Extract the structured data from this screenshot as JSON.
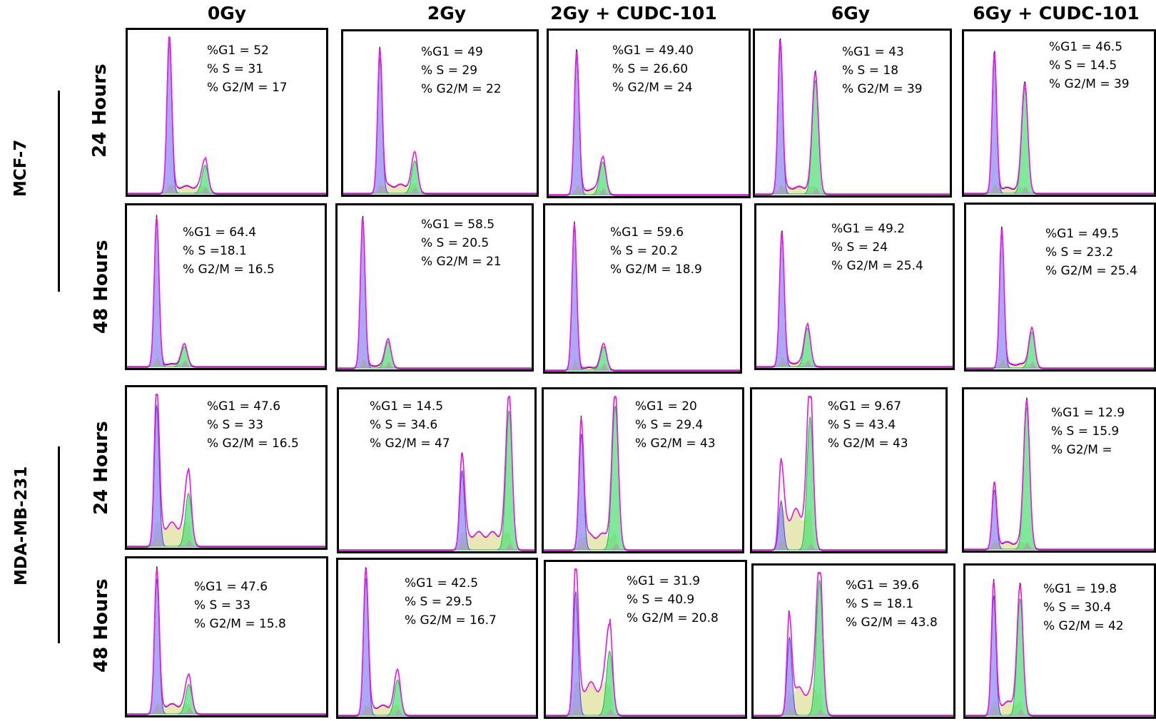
{
  "figure": {
    "columns": [
      "0Gy",
      "2Gy",
      "2Gy + CUDC-101",
      "6Gy",
      "6Gy + CUDC-101"
    ],
    "cell_lines": [
      "MCF-7",
      "MDA-MB-231"
    ],
    "timepoints": [
      "24 Hours",
      "48 Hours",
      "24 Hours",
      "48 Hours"
    ]
  },
  "colors": {
    "g1": "#8f8cf0",
    "s": "#e0df9e",
    "g2m": "#54e07a",
    "overlay": "#ee14ee",
    "raw": "#111111",
    "debris": "#a8a8a8"
  },
  "chart_data": {
    "type": "histogram",
    "description_axes": "DNA content (x) vs cell count (y); phase-fit overlays G1 / S / G2-M",
    "panels": [
      {
        "line": "MCF-7",
        "time": "24 Hours",
        "treatment": "0Gy",
        "lines": [
          "%G1 = 52",
          "% S = 31",
          "% G2/M = 17"
        ],
        "g1": 52,
        "s": 31,
        "g2m": 17,
        "peaks": {
          "g1_pos": 0.21,
          "g1_h": 0.97,
          "g2_pos": 0.39,
          "g2_h": 0.18,
          "s_level": 0.05
        }
      },
      {
        "line": "MCF-7",
        "time": "24 Hours",
        "treatment": "2Gy",
        "lines": [
          "%G1 = 49",
          "% S = 29",
          "% G2/M = 22"
        ],
        "g1": 49,
        "s": 29,
        "g2m": 22,
        "peaks": {
          "g1_pos": 0.19,
          "g1_h": 0.88,
          "g2_pos": 0.37,
          "g2_h": 0.21,
          "s_level": 0.06
        }
      },
      {
        "line": "MCF-7",
        "time": "24 Hours",
        "treatment": "2Gy + CUDC-101",
        "lines": [
          "%G1 = 49.40",
          "% S = 26.60",
          "% G2/M = 24"
        ],
        "g1": 49.4,
        "s": 26.6,
        "g2m": 24,
        "peaks": {
          "g1_pos": 0.14,
          "g1_h": 0.88,
          "g2_pos": 0.27,
          "g2_h": 0.21,
          "s_level": 0.04
        }
      },
      {
        "line": "MCF-7",
        "time": "24 Hours",
        "treatment": "6Gy",
        "lines": [
          "%G1 = 43",
          "% S = 18",
          "% G2/M = 39"
        ],
        "g1": 43,
        "s": 18,
        "g2m": 39,
        "peaks": {
          "g1_pos": 0.13,
          "g1_h": 0.95,
          "g2_pos": 0.31,
          "g2_h": 0.73,
          "s_level": 0.05
        }
      },
      {
        "line": "MCF-7",
        "time": "24 Hours",
        "treatment": "6Gy + CUDC-101",
        "lines": [
          "%G1 = 46.5",
          "% S = 14.5",
          "% G2/M = 39"
        ],
        "g1": 46.5,
        "s": 14.5,
        "g2m": 39,
        "peaks": {
          "g1_pos": 0.16,
          "g1_h": 0.87,
          "g2_pos": 0.32,
          "g2_h": 0.68,
          "s_level": 0.04
        }
      },
      {
        "line": "MCF-7",
        "time": "48 Hours",
        "treatment": "0Gy",
        "lines": [
          "%G1 = 64.4",
          "% S =18.1",
          "% G2/M = 16.5"
        ],
        "g1": 64.4,
        "s": 18.1,
        "g2m": 16.5,
        "peaks": {
          "g1_pos": 0.15,
          "g1_h": 0.95,
          "g2_pos": 0.29,
          "g2_h": 0.13,
          "s_level": 0.02
        }
      },
      {
        "line": "MCF-7",
        "time": "48 Hours",
        "treatment": "2Gy",
        "lines": [
          "%G1 = 58.5",
          "% S = 20.5",
          "% G2/M = 21"
        ],
        "g1": 58.5,
        "s": 20.5,
        "g2m": 21,
        "peaks": {
          "g1_pos": 0.13,
          "g1_h": 0.95,
          "g2_pos": 0.26,
          "g2_h": 0.17,
          "s_level": 0.02
        }
      },
      {
        "line": "MCF-7",
        "time": "48 Hours",
        "treatment": "2Gy + CUDC-101",
        "lines": [
          "%G1 = 59.6",
          "% S = 20.2",
          "% G2/M = 18.9"
        ],
        "g1": 59.6,
        "s": 20.2,
        "g2m": 18.9,
        "peaks": {
          "g1_pos": 0.15,
          "g1_h": 0.91,
          "g2_pos": 0.3,
          "g2_h": 0.15,
          "s_level": 0.02
        }
      },
      {
        "line": "MCF-7",
        "time": "48 Hours",
        "treatment": "6Gy",
        "lines": [
          "%G1 = 49.2",
          "% S = 24",
          "% G2/M = 25.4"
        ],
        "g1": 49.2,
        "s": 24,
        "g2m": 25.4,
        "peaks": {
          "g1_pos": 0.13,
          "g1_h": 0.85,
          "g2_pos": 0.26,
          "g2_h": 0.25,
          "s_level": 0.03
        }
      },
      {
        "line": "MCF-7",
        "time": "48 Hours",
        "treatment": "6Gy + CUDC-101",
        "lines": [
          "%G1 = 49.5",
          "% S = 23.2",
          "% G2/M = 25.4"
        ],
        "g1": 49.5,
        "s": 23.2,
        "g2m": 25.4,
        "peaks": {
          "g1_pos": 0.19,
          "g1_h": 0.87,
          "g2_pos": 0.35,
          "g2_h": 0.23,
          "s_level": 0.03
        }
      },
      {
        "line": "MDA-MB-231",
        "time": "24 Hours",
        "treatment": "0Gy",
        "lines": [
          "%G1 = 47.6",
          "% S = 33",
          "% G2/M = 16.5"
        ],
        "g1": 47.6,
        "s": 33,
        "g2m": 16.5,
        "peaks": {
          "g1_pos": 0.15,
          "g1_h": 0.93,
          "g2_pos": 0.31,
          "g2_h": 0.35,
          "s_level": 0.16
        }
      },
      {
        "line": "MDA-MB-231",
        "time": "24 Hours",
        "treatment": "2Gy",
        "lines": [
          "%G1 = 14.5",
          "% S = 34.6",
          "% G2/M = 47"
        ],
        "g1": 14.5,
        "s": 34.6,
        "g2m": 47,
        "peaks": {
          "g1_pos": 0.63,
          "g1_h": 0.52,
          "g2_pos": 0.87,
          "g2_h": 0.91,
          "s_level": 0.12
        }
      },
      {
        "line": "MDA-MB-231",
        "time": "24 Hours",
        "treatment": "2Gy + CUDC-101",
        "lines": [
          "%G1 = 20",
          "% S = 29.4",
          "% G2/M = 43"
        ],
        "g1": 20,
        "s": 29.4,
        "g2m": 43,
        "peaks": {
          "g1_pos": 0.19,
          "g1_h": 0.76,
          "g2_pos": 0.36,
          "g2_h": 0.94,
          "s_level": 0.11
        }
      },
      {
        "line": "MDA-MB-231",
        "time": "24 Hours",
        "treatment": "6Gy",
        "lines": [
          "%G1 = 9.67",
          "% S = 43.4",
          "% G2/M = 43"
        ],
        "g1": 9.67,
        "s": 43.4,
        "g2m": 43,
        "peaks": {
          "g1_pos": 0.15,
          "g1_h": 0.32,
          "g2_pos": 0.3,
          "g2_h": 0.87,
          "s_level": 0.27
        }
      },
      {
        "line": "MDA-MB-231",
        "time": "24 Hours",
        "treatment": "6Gy + CUDC-101",
        "lines": [
          "%G1 = 12.9",
          "% S = 15.9",
          "% G2/M ="
        ],
        "g1": 12.9,
        "s": 15.9,
        "g2m": null,
        "peaks": {
          "g1_pos": 0.16,
          "g1_h": 0.39,
          "g2_pos": 0.33,
          "g2_h": 0.93,
          "s_level": 0.05
        }
      },
      {
        "line": "MDA-MB-231",
        "time": "48 Hours",
        "treatment": "0Gy",
        "lines": [
          "%G1 = 47.6",
          "% S = 33",
          "% G2/M = 15.8"
        ],
        "g1": 47.6,
        "s": 33,
        "g2m": 15.8,
        "peaks": {
          "g1_pos": 0.15,
          "g1_h": 0.91,
          "g2_pos": 0.31,
          "g2_h": 0.2,
          "s_level": 0.07
        }
      },
      {
        "line": "MDA-MB-231",
        "time": "48 Hours",
        "treatment": "2Gy",
        "lines": [
          "%G1 = 42.5",
          "% S = 29.5",
          "% G2/M = 16.7"
        ],
        "g1": 42.5,
        "s": 29.5,
        "g2m": 16.7,
        "peaks": {
          "g1_pos": 0.14,
          "g1_h": 0.93,
          "g2_pos": 0.3,
          "g2_h": 0.24,
          "s_level": 0.07
        }
      },
      {
        "line": "MDA-MB-231",
        "time": "48 Hours",
        "treatment": "2Gy + CUDC-101",
        "lines": [
          "%G1 = 31.9",
          "% S = 40.9",
          "% G2/M = 20.8"
        ],
        "g1": 31.9,
        "s": 40.9,
        "g2m": 20.8,
        "peaks": {
          "g1_pos": 0.15,
          "g1_h": 0.85,
          "g2_pos": 0.32,
          "g2_h": 0.44,
          "s_level": 0.23
        }
      },
      {
        "line": "MDA-MB-231",
        "time": "48 Hours",
        "treatment": "6Gy",
        "lines": [
          "%G1 = 39.6",
          "% S = 18.1",
          "% G2/M = 43.8"
        ],
        "g1": 39.6,
        "s": 18.1,
        "g2m": 43.8,
        "peaks": {
          "g1_pos": 0.18,
          "g1_h": 0.55,
          "g2_pos": 0.33,
          "g2_h": 0.95,
          "s_level": 0.2
        }
      },
      {
        "line": "MDA-MB-231",
        "time": "48 Hours",
        "treatment": "6Gy + CUDC-101",
        "lines": [
          "%G1 = 19.8",
          "% S = 30.4",
          "% G2/M = 42"
        ],
        "g1": 19.8,
        "s": 30.4,
        "g2m": 42,
        "peaks": {
          "g1_pos": 0.15,
          "g1_h": 0.84,
          "g2_pos": 0.29,
          "g2_h": 0.82,
          "s_level": 0.1
        }
      }
    ]
  }
}
